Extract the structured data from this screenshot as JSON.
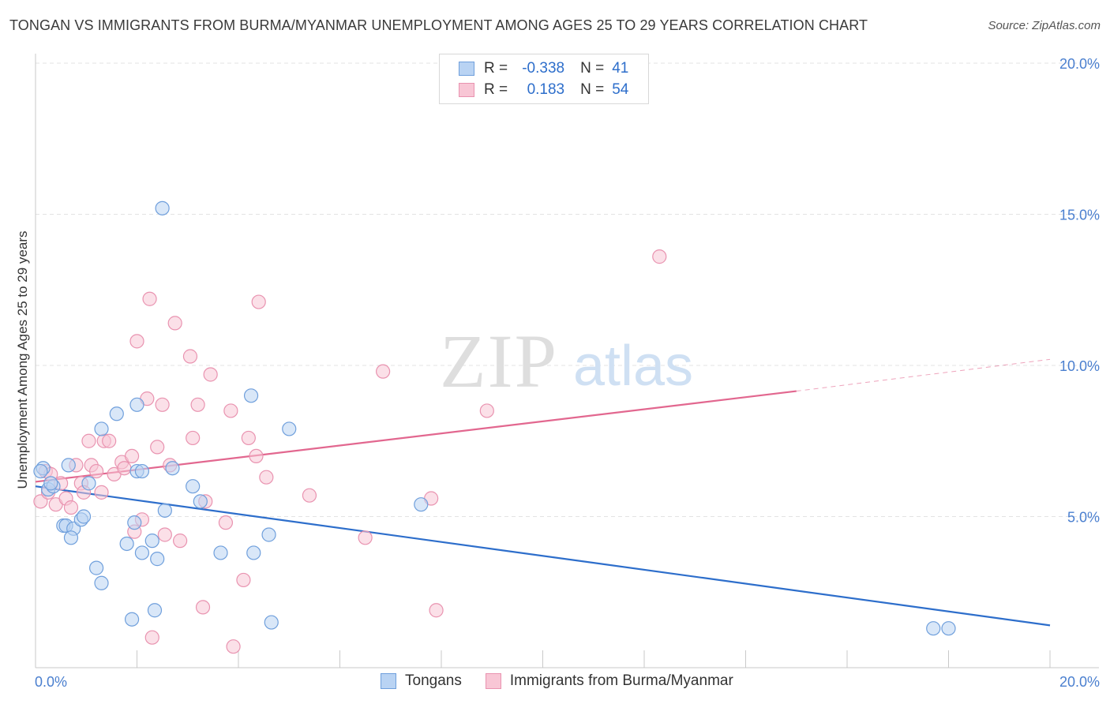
{
  "title": "TONGAN VS IMMIGRANTS FROM BURMA/MYANMAR UNEMPLOYMENT AMONG AGES 25 TO 29 YEARS CORRELATION CHART",
  "source": "Source: ZipAtlas.com",
  "watermark": {
    "zip": "ZIP",
    "atlas": "atlas"
  },
  "legend": {
    "rows": [
      {
        "r_label": "R =",
        "r_value": "-0.338",
        "n_label": "N =",
        "n_value": "41"
      },
      {
        "r_label": "R =",
        "r_value": "0.183",
        "n_label": "N =",
        "n_value": "54"
      }
    ]
  },
  "colors": {
    "tongans_fill": "#b9d3f3",
    "tongans_stroke": "#6f9fdc",
    "tongans_line": "#2d6ecb",
    "burma_fill": "#f8c6d5",
    "burma_stroke": "#e993b0",
    "burma_line": "#e2678f",
    "axis_text": "#4a7fcf",
    "grid": "#e3e3e3"
  },
  "chart_data": {
    "type": "scatter",
    "title": "TONGAN VS IMMIGRANTS FROM BURMA/MYANMAR UNEMPLOYMENT AMONG AGES 25 TO 29 YEARS CORRELATION CHART",
    "xlabel": "",
    "ylabel": "Unemployment Among Ages 25 to 29 years",
    "xlim": [
      0,
      20
    ],
    "ylim": [
      0,
      20
    ],
    "x_tick_labels": [
      "0.0%",
      "20.0%"
    ],
    "y_tick_values": [
      5,
      10,
      15,
      20
    ],
    "y_tick_labels": [
      "5.0%",
      "10.0%",
      "15.0%",
      "20.0%"
    ],
    "grid": true,
    "legend_position": "top-center",
    "series": [
      {
        "name": "Tongans",
        "r": -0.338,
        "n": 41,
        "trend": {
          "x": [
            0,
            20
          ],
          "y": [
            6.0,
            1.4
          ]
        },
        "points": [
          [
            0.15,
            6.6
          ],
          [
            0.1,
            6.5
          ],
          [
            0.25,
            5.9
          ],
          [
            0.35,
            6.0
          ],
          [
            0.3,
            6.1
          ],
          [
            0.55,
            4.7
          ],
          [
            0.6,
            4.7
          ],
          [
            0.75,
            4.6
          ],
          [
            0.7,
            4.3
          ],
          [
            0.65,
            6.7
          ],
          [
            0.9,
            4.9
          ],
          [
            0.95,
            5.0
          ],
          [
            1.05,
            6.1
          ],
          [
            1.2,
            3.3
          ],
          [
            1.3,
            2.8
          ],
          [
            1.3,
            7.9
          ],
          [
            1.6,
            8.4
          ],
          [
            1.8,
            4.1
          ],
          [
            1.9,
            1.6
          ],
          [
            1.95,
            4.8
          ],
          [
            2.0,
            6.5
          ],
          [
            2.1,
            3.8
          ],
          [
            2.0,
            8.7
          ],
          [
            2.3,
            4.2
          ],
          [
            2.35,
            1.9
          ],
          [
            2.4,
            3.6
          ],
          [
            2.5,
            15.2
          ],
          [
            2.55,
            5.2
          ],
          [
            2.7,
            6.6
          ],
          [
            3.1,
            6.0
          ],
          [
            3.25,
            5.5
          ],
          [
            3.65,
            3.8
          ],
          [
            4.3,
            3.8
          ],
          [
            4.25,
            9.0
          ],
          [
            4.6,
            4.4
          ],
          [
            4.65,
            1.5
          ],
          [
            5.0,
            7.9
          ],
          [
            7.6,
            5.4
          ],
          [
            17.7,
            1.3
          ],
          [
            18.0,
            1.3
          ],
          [
            2.1,
            6.5
          ]
        ]
      },
      {
        "name": "Immigrants from Burma/Myanmar",
        "r": 0.183,
        "n": 54,
        "trend": {
          "x": [
            0,
            15
          ],
          "y": [
            6.15,
            9.15
          ]
        },
        "trend_dashed": {
          "x": [
            15,
            20
          ],
          "y": [
            9.15,
            10.2
          ]
        },
        "points": [
          [
            0.1,
            5.5
          ],
          [
            0.2,
            6.5
          ],
          [
            0.25,
            5.8
          ],
          [
            0.3,
            6.4
          ],
          [
            0.4,
            5.4
          ],
          [
            0.5,
            6.1
          ],
          [
            0.6,
            5.6
          ],
          [
            0.7,
            5.3
          ],
          [
            0.8,
            6.7
          ],
          [
            0.9,
            6.1
          ],
          [
            0.95,
            5.8
          ],
          [
            1.05,
            7.5
          ],
          [
            1.1,
            6.7
          ],
          [
            1.2,
            6.5
          ],
          [
            1.3,
            5.8
          ],
          [
            1.35,
            7.5
          ],
          [
            1.45,
            7.5
          ],
          [
            1.55,
            6.4
          ],
          [
            1.7,
            6.8
          ],
          [
            1.75,
            6.6
          ],
          [
            1.9,
            7.0
          ],
          [
            1.95,
            4.5
          ],
          [
            2.0,
            10.8
          ],
          [
            2.1,
            4.9
          ],
          [
            2.2,
            8.9
          ],
          [
            2.25,
            12.2
          ],
          [
            2.3,
            1.0
          ],
          [
            2.4,
            7.3
          ],
          [
            2.5,
            8.7
          ],
          [
            2.55,
            4.4
          ],
          [
            2.65,
            6.7
          ],
          [
            2.75,
            11.4
          ],
          [
            2.85,
            4.2
          ],
          [
            3.05,
            10.3
          ],
          [
            3.1,
            7.6
          ],
          [
            3.2,
            8.7
          ],
          [
            3.3,
            2.0
          ],
          [
            3.35,
            5.5
          ],
          [
            3.45,
            9.7
          ],
          [
            3.75,
            4.8
          ],
          [
            3.85,
            8.5
          ],
          [
            3.9,
            0.7
          ],
          [
            4.1,
            2.9
          ],
          [
            4.2,
            7.6
          ],
          [
            4.35,
            7.0
          ],
          [
            4.4,
            12.1
          ],
          [
            4.55,
            6.3
          ],
          [
            5.4,
            5.7
          ],
          [
            6.5,
            4.3
          ],
          [
            6.85,
            9.8
          ],
          [
            7.8,
            5.6
          ],
          [
            7.9,
            1.9
          ],
          [
            8.9,
            8.5
          ],
          [
            12.3,
            13.6
          ]
        ]
      }
    ]
  },
  "bottom_legend": [
    "Tongans",
    "Immigrants from Burma/Myanmar"
  ]
}
